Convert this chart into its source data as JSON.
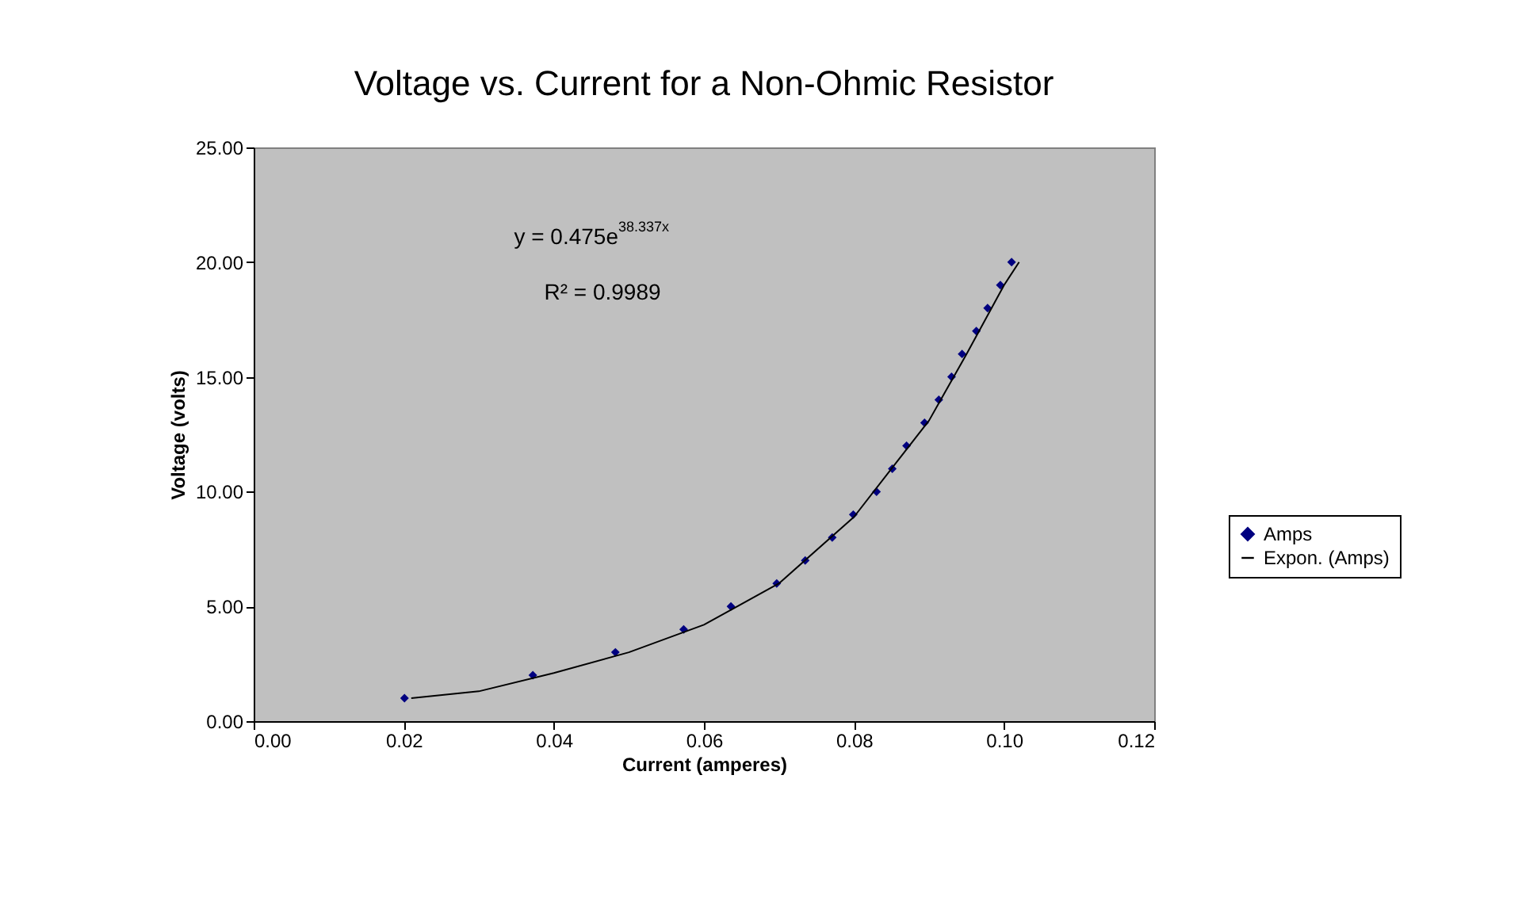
{
  "chart_data": {
    "type": "scatter",
    "title": "Voltage vs. Current for a Non-Ohmic Resistor",
    "xlabel": "Current (amperes)",
    "ylabel": "Voltage (volts)",
    "annotations": [
      "y = 0.475e$^{38.337x}$",
      "R² = 0.9989"
    ],
    "xlim": [
      0,
      0.12
    ],
    "xticks": [
      {
        "value": 0,
        "label": "0.00"
      },
      {
        "value": 0.02,
        "label": "0.02"
      },
      {
        "value": 0.04,
        "label": "0.04"
      },
      {
        "value": 0.06,
        "label": "0.06"
      },
      {
        "value": 0.08,
        "label": "0.08"
      },
      {
        "value": 0.1,
        "label": "0.10"
      },
      {
        "value": 0.12,
        "label": "0.12"
      }
    ],
    "ylim": [
      0,
      25
    ],
    "yticks": [
      {
        "value": 0,
        "label": "0.00"
      },
      {
        "value": 5,
        "label": "5.00"
      },
      {
        "value": 10,
        "label": "10.00"
      },
      {
        "value": 15,
        "label": "15.00"
      },
      {
        "value": 20,
        "label": "20.00"
      },
      {
        "value": 25,
        "label": "25.00"
      }
    ],
    "grid": false,
    "legend": "right",
    "series": [
      {
        "name": "Amps",
        "marker": "diamond",
        "color": "#000080",
        "x": [
          0.0201,
          0.0372,
          0.0482,
          0.0573,
          0.0636,
          0.0697,
          0.0735,
          0.0771,
          0.0799,
          0.083,
          0.0851,
          0.087,
          0.0894,
          0.0913,
          0.093,
          0.0944,
          0.0963,
          0.0978,
          0.0995,
          0.101
        ],
        "values": [
          1,
          2,
          3,
          4,
          5,
          6,
          7,
          8,
          9,
          10,
          11,
          12,
          13,
          14,
          15,
          16,
          17,
          18,
          19,
          20
        ]
      },
      {
        "name": "Expon. (Amps)",
        "type": "line",
        "marker": "none",
        "color": "#000000",
        "x": [
          0.021,
          0.03,
          0.04,
          0.05,
          0.06,
          0.07,
          0.08,
          0.085,
          0.09,
          0.095,
          0.1,
          0.102
        ],
        "values": [
          1.0,
          1.3,
          2.1,
          3.0,
          4.2,
          6.0,
          8.9,
          11.0,
          13.1,
          16.0,
          19.0,
          20.0
        ]
      }
    ]
  }
}
